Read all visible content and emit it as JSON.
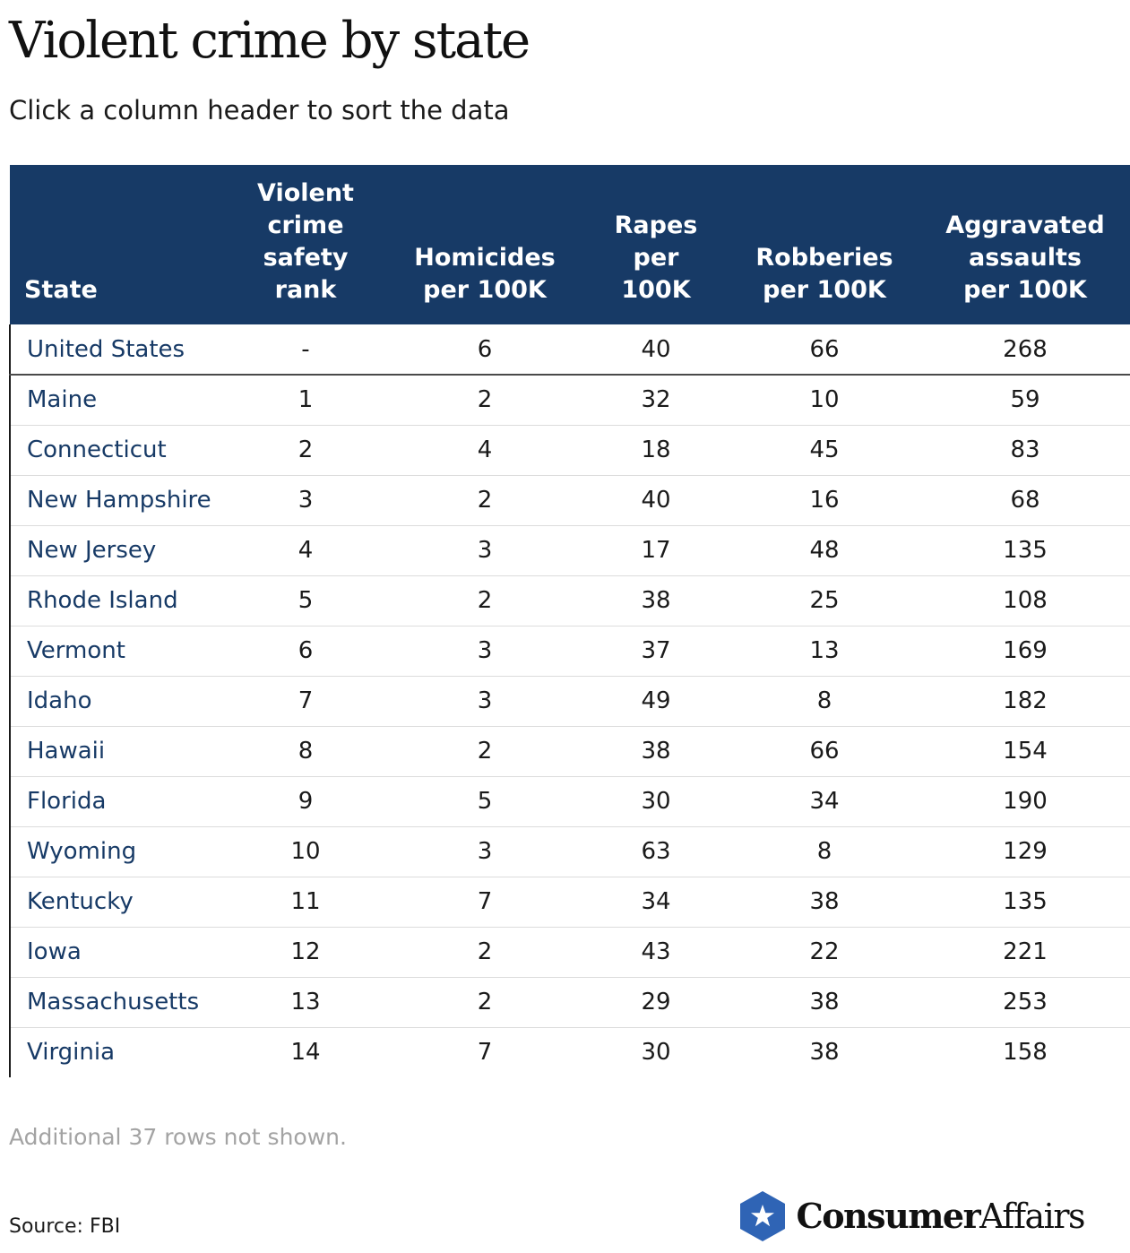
{
  "title": "Violent crime by state",
  "subtitle": "Click a column header to sort the data",
  "note": "Additional 37 rows not shown.",
  "source": "Source: FBI",
  "logo": {
    "bold": "Consumer",
    "light": "Affairs",
    "icon": "shield-star-icon"
  },
  "colors": {
    "header_bg": "#173a66",
    "state_text": "#173a66",
    "logo_blue": "#2f64b5"
  },
  "chart_data": {
    "type": "table",
    "columns": [
      "State",
      "Violent crime safety rank",
      "Homicides per 100K",
      "Rapes per 100K",
      "Robberies per 100K",
      "Aggravated assaults per 100K"
    ],
    "header_lines": [
      [
        "State"
      ],
      [
        "Violent",
        "crime",
        "safety",
        "rank"
      ],
      [
        "Homicides",
        "per 100K"
      ],
      [
        "Rapes",
        "per",
        "100K"
      ],
      [
        "Robberies",
        "per 100K"
      ],
      [
        "Aggravated",
        "assaults",
        "per 100K"
      ]
    ],
    "rows": [
      [
        "United States",
        "-",
        6,
        40,
        66,
        268
      ],
      [
        "Maine",
        1,
        2,
        32,
        10,
        59
      ],
      [
        "Connecticut",
        2,
        4,
        18,
        45,
        83
      ],
      [
        "New Hampshire",
        3,
        2,
        40,
        16,
        68
      ],
      [
        "New Jersey",
        4,
        3,
        17,
        48,
        135
      ],
      [
        "Rhode Island",
        5,
        2,
        38,
        25,
        108
      ],
      [
        "Vermont",
        6,
        3,
        37,
        13,
        169
      ],
      [
        "Idaho",
        7,
        3,
        49,
        8,
        182
      ],
      [
        "Hawaii",
        8,
        2,
        38,
        66,
        154
      ],
      [
        "Florida",
        9,
        5,
        30,
        34,
        190
      ],
      [
        "Wyoming",
        10,
        3,
        63,
        8,
        129
      ],
      [
        "Kentucky",
        11,
        7,
        34,
        38,
        135
      ],
      [
        "Iowa",
        12,
        2,
        43,
        22,
        221
      ],
      [
        "Massachusetts",
        13,
        2,
        29,
        38,
        253
      ],
      [
        "Virginia",
        14,
        7,
        30,
        38,
        158
      ]
    ]
  }
}
